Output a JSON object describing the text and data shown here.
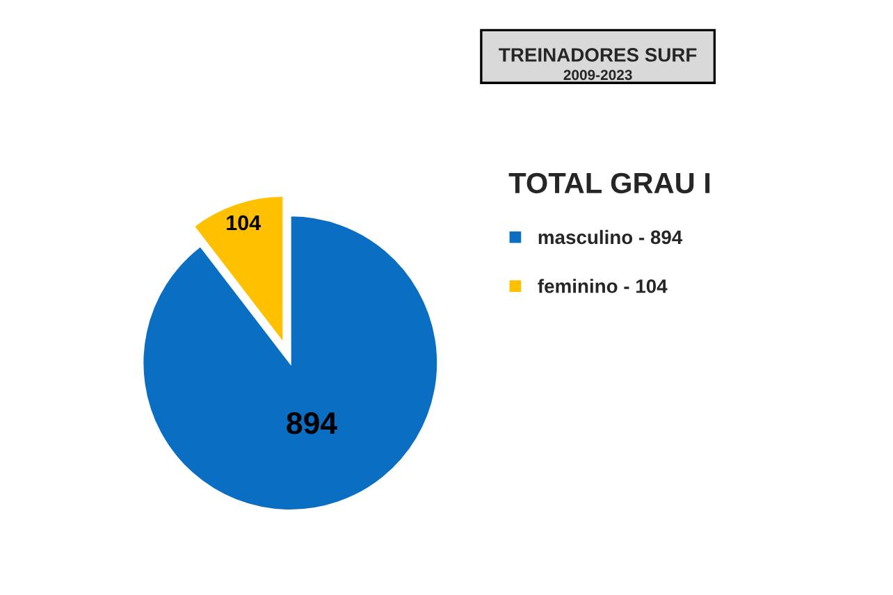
{
  "chart_data": {
    "type": "pie",
    "title": "TREINADORES SURF",
    "subtitle": "2009-2023",
    "legend_title": "TOTAL GRAU I",
    "categories": [
      "masculino - 894",
      "feminino - 104"
    ],
    "values": [
      894,
      104
    ],
    "colors": [
      "#0a6fc2",
      "#ffc000"
    ],
    "value_labels": [
      "894",
      "104"
    ],
    "legend": "right"
  }
}
